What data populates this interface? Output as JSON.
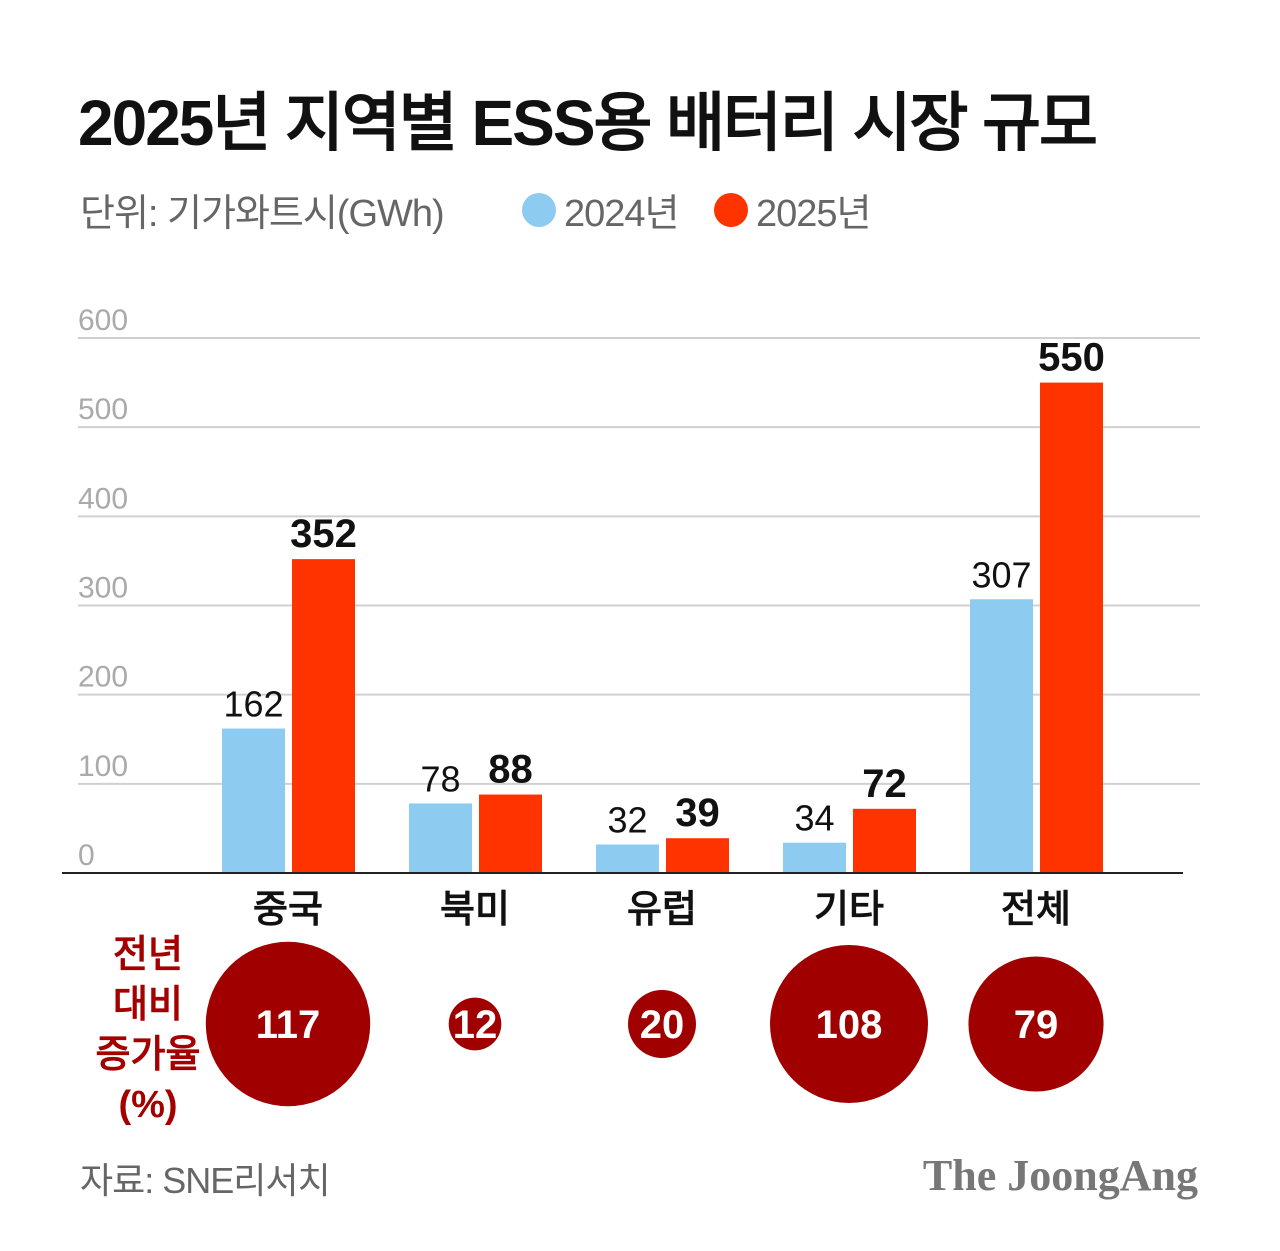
{
  "title": "2025년 지역별 ESS용 배터리 시장 규모",
  "unit": "단위: 기가와트시(GWh)",
  "source": "자료: SNE리서치",
  "logo": "The JoongAng",
  "colors": {
    "2024": "#8ecbf1",
    "2025": "#ff3300",
    "growth": "#a00000"
  },
  "chart_data": {
    "type": "bar",
    "categories": [
      "중국",
      "북미",
      "유럽",
      "기타",
      "전체"
    ],
    "series": [
      {
        "name": "2024년",
        "values": [
          162,
          78,
          32,
          34,
          307
        ]
      },
      {
        "name": "2025년",
        "values": [
          352,
          88,
          39,
          72,
          550
        ]
      }
    ],
    "ylim": [
      0,
      600
    ],
    "yticks": [
      "0",
      "100",
      "200",
      "300",
      "400",
      "500",
      "600"
    ],
    "grid": true,
    "legend": "top-left",
    "growth_label": [
      "전년",
      "대비",
      "증가율",
      "(%)"
    ],
    "growth_pct": [
      117,
      12,
      20,
      108,
      79
    ]
  }
}
